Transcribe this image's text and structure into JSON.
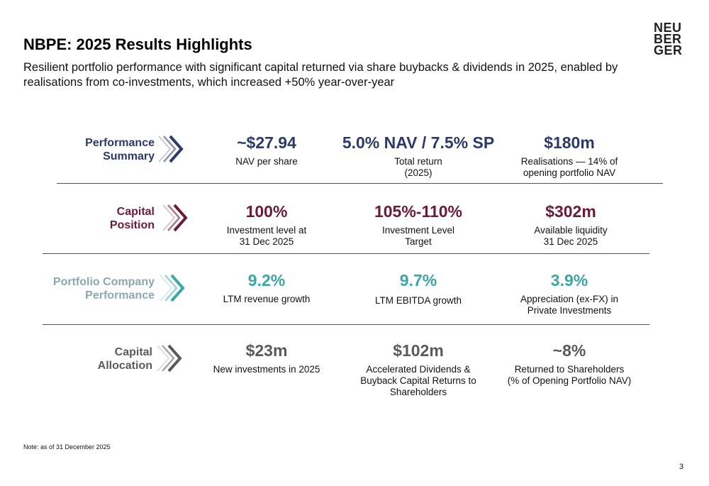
{
  "title": "NBPE: 2025 Results Highlights",
  "subtitle": "Resilient portfolio performance with significant capital returned via share buybacks & dividends in 2025, enabled by realisations from co-investments, which increased +50% year-over-year",
  "logo": {
    "line1": "NEU",
    "line2": "BER",
    "line3": "GER"
  },
  "colors": {
    "performance": "#2b3a6b",
    "capital": "#6b1a3a",
    "portfolio": "#3aa6a6",
    "allocation": "#5a5a5a"
  },
  "rows": [
    {
      "label_line1": "Performance",
      "label_line2": "Summary",
      "metrics": [
        {
          "value": "~$27.94",
          "desc_line1": "NAV per share",
          "desc_line2": ""
        },
        {
          "value": "5.0% NAV / 7.5% SP",
          "desc_line1": "Total return",
          "desc_line2": "(2025)"
        },
        {
          "value": "$180m",
          "desc_line1": "Realisations — 14% of",
          "desc_line2": "opening portfolio NAV"
        }
      ]
    },
    {
      "label_line1": "Capital",
      "label_line2": "Position",
      "metrics": [
        {
          "value": "100%",
          "desc_line1": "Investment level at",
          "desc_line2": "31 Dec 2025"
        },
        {
          "value": "105%-110%",
          "desc_line1": "Investment Level",
          "desc_line2": "Target"
        },
        {
          "value": "$302m",
          "desc_line1": "Available liquidity",
          "desc_line2": "31 Dec 2025"
        }
      ]
    },
    {
      "label_line1": "Portfolio Company",
      "label_line2": "Performance",
      "metrics": [
        {
          "value": "9.2%",
          "desc_line1": "LTM revenue growth",
          "desc_line2": ""
        },
        {
          "value": "9.7%",
          "desc_line1": "LTM EBITDA growth",
          "desc_line2": ""
        },
        {
          "value": "3.9%",
          "desc_line1": "Appreciation (ex-FX) in",
          "desc_line2": "Private Investments"
        }
      ]
    },
    {
      "label_line1": "Capital",
      "label_line2": "Allocation",
      "metrics": [
        {
          "value": "$23m",
          "desc_line1": "New investments in 2025",
          "desc_line2": "",
          "desc_line3": ""
        },
        {
          "value": "$102m",
          "desc_line1": "Accelerated Dividends &",
          "desc_line2": "Buyback Capital Returns to",
          "desc_line3": "Shareholders"
        },
        {
          "value": "~8%",
          "desc_line1": "Returned to Shareholders",
          "desc_line2": "(% of Opening Portfolio NAV)",
          "desc_line3": ""
        }
      ]
    }
  ],
  "note": "Note: as of 31 December 2025",
  "page_number": "3"
}
